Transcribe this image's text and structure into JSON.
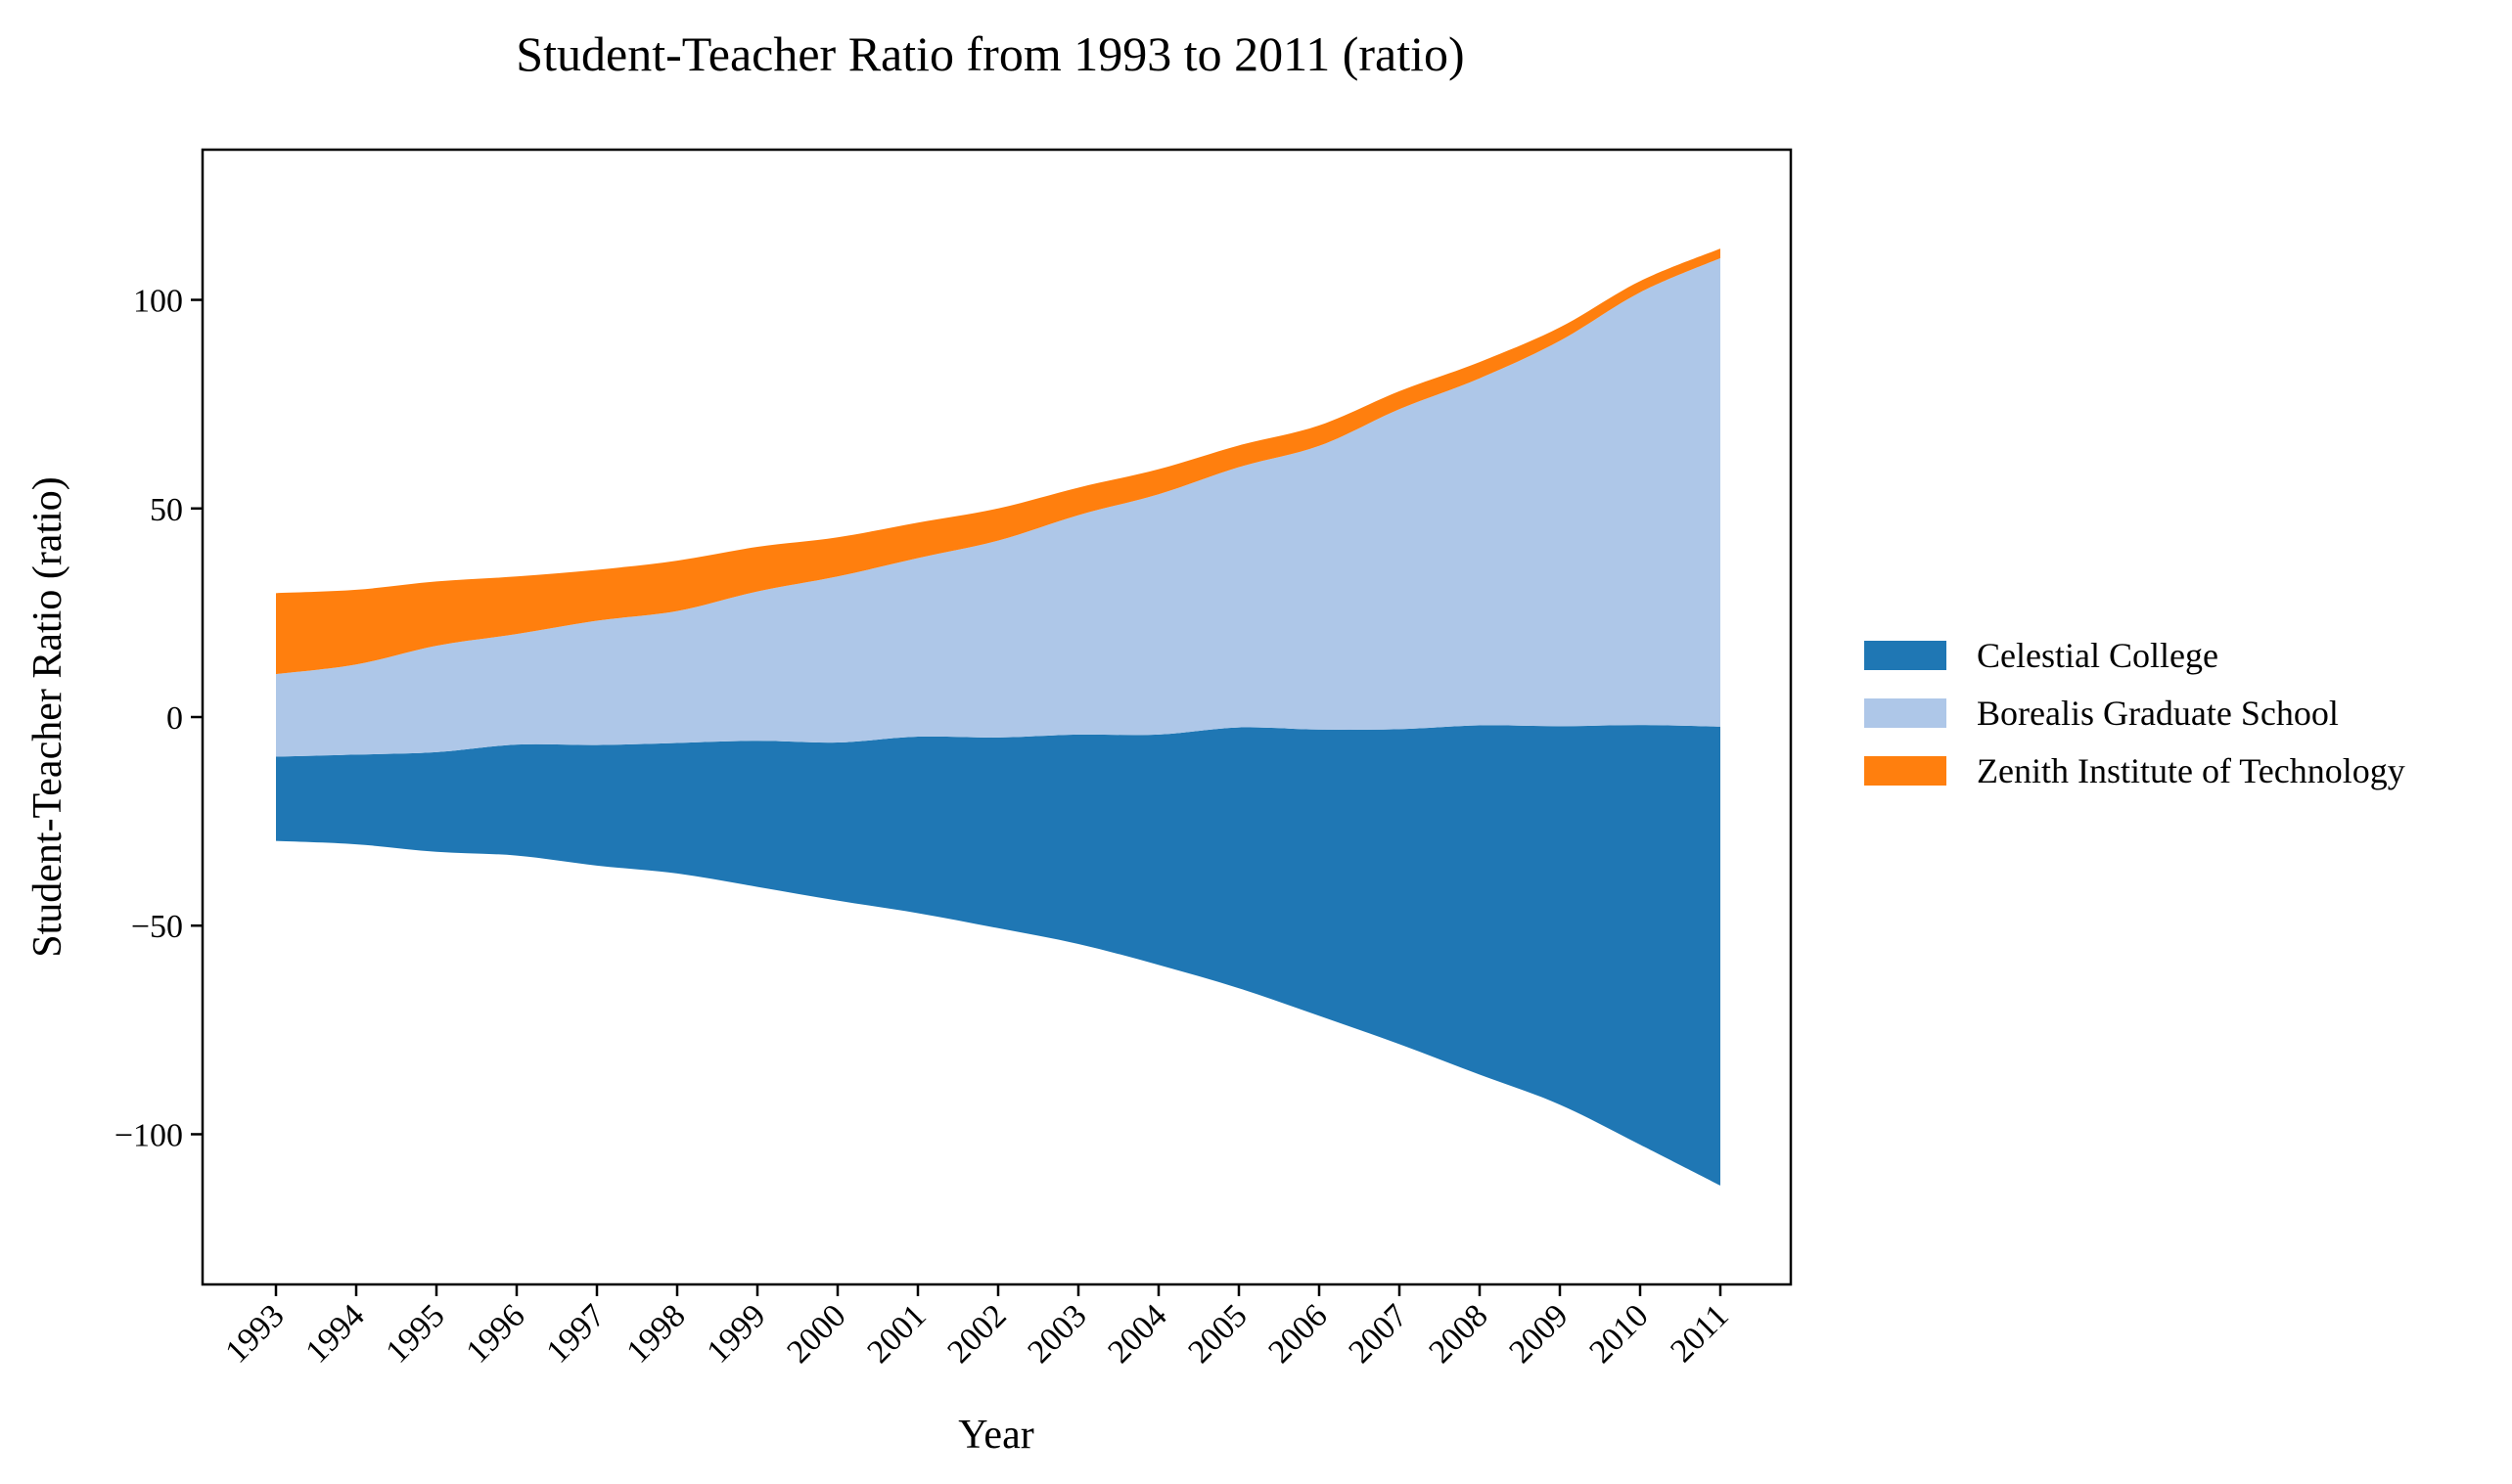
{
  "chart_data": {
    "type": "area",
    "subtype": "streamgraph",
    "title": "Student-Teacher Ratio from 1993 to 2011 (ratio)",
    "xlabel": "Year",
    "ylabel": "Student-Teacher Ratio (ratio)",
    "categories": [
      "1993",
      "1994",
      "1995",
      "1996",
      "1997",
      "1998",
      "1999",
      "2000",
      "2001",
      "2002",
      "2003",
      "2004",
      "2005",
      "2006",
      "2007",
      "2008",
      "2009",
      "2010",
      "2011"
    ],
    "baseline": [
      -29.7,
      -30.5,
      -32.3,
      -33.2,
      -35.6,
      -37.5,
      -40.7,
      -44.0,
      -47.0,
      -50.6,
      -54.4,
      -59.4,
      -65.0,
      -71.6,
      -78.4,
      -85.7,
      -92.9,
      -102.5,
      -112.3
    ],
    "series": [
      {
        "name": "Celestial College",
        "color": "#1f77b4",
        "values": [
          20.2,
          21.5,
          23.9,
          26.6,
          28.9,
          31.3,
          35.0,
          37.9,
          42.3,
          45.7,
          50.2,
          55.2,
          62.5,
          68.6,
          75.5,
          83.7,
          90.7,
          100.6,
          110.0
        ]
      },
      {
        "name": "Borealis Graduate School",
        "color": "#aec7e8",
        "values": [
          19.8,
          21.6,
          25.5,
          26.5,
          29.8,
          31.6,
          35.8,
          39.8,
          42.8,
          47.2,
          52.6,
          57.6,
          62.4,
          68.0,
          76.7,
          83.2,
          92.4,
          103.7,
          112.3
        ]
      },
      {
        "name": "Zenith Institute of Technology",
        "color": "#ff7f0e",
        "values": [
          19.4,
          17.9,
          15.4,
          13.8,
          12.2,
          12.1,
          10.7,
          9.4,
          8.5,
          7.7,
          6.6,
          6.0,
          5.2,
          4.9,
          4.3,
          3.9,
          3.2,
          2.7,
          2.3
        ]
      }
    ],
    "ylim": [
      -136,
      136
    ],
    "yticks": [
      -100,
      -50,
      0,
      50,
      100
    ],
    "ytick_labels": [
      "−100",
      "−50",
      "0",
      "50",
      "100"
    ],
    "legend_position": "right, outside plot",
    "grid": false
  }
}
